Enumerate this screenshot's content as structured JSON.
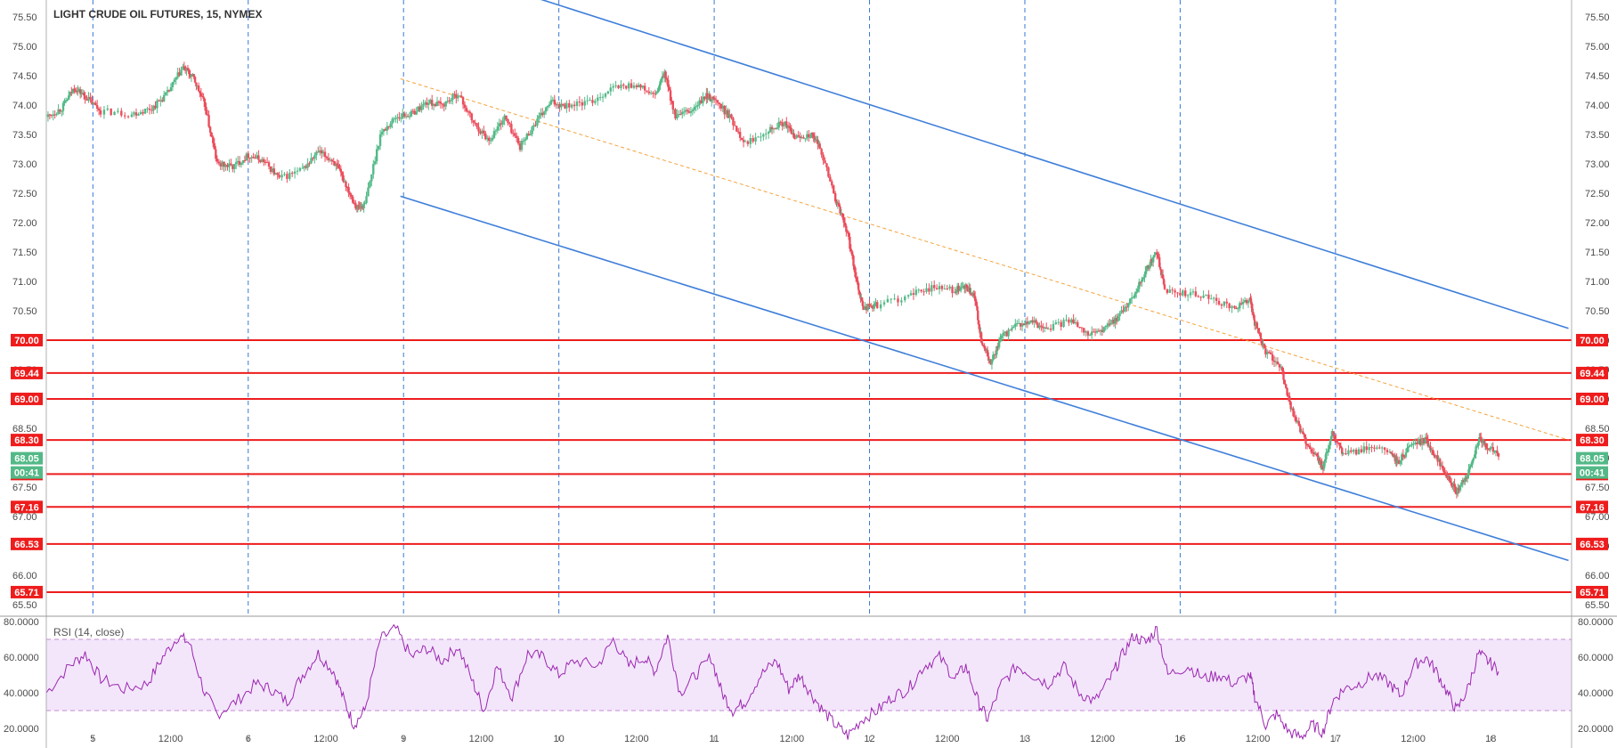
{
  "chart_data": {
    "type": "candlestick",
    "title": "LIGHT CRUDE OIL FUTURES, 15, NYMEX",
    "y_axis": {
      "range": [
        65.3,
        75.7
      ],
      "ticks": [
        "75.50",
        "75.00",
        "74.50",
        "74.00",
        "73.50",
        "73.00",
        "72.50",
        "72.00",
        "71.50",
        "71.00",
        "70.50",
        "70.00",
        "69.50",
        "69.00",
        "68.50",
        "68.00",
        "67.50",
        "67.00",
        "66.50",
        "66.00",
        "65.50"
      ]
    },
    "x_axis": {
      "ticks": [
        {
          "label": "5",
          "t": 1.0
        },
        {
          "label": "12:00",
          "t": 1.5
        },
        {
          "label": "6",
          "t": 2.0
        },
        {
          "label": "12:00",
          "t": 2.5
        },
        {
          "label": "9",
          "t": 3.0
        },
        {
          "label": "12:00",
          "t": 3.5
        },
        {
          "label": "10",
          "t": 4.0
        },
        {
          "label": "12:00",
          "t": 4.5
        },
        {
          "label": "11",
          "t": 5.0
        },
        {
          "label": "12:00",
          "t": 5.5
        },
        {
          "label": "12",
          "t": 6.0
        },
        {
          "label": "12:00",
          "t": 6.5
        },
        {
          "label": "13",
          "t": 7.0
        },
        {
          "label": "12:00",
          "t": 7.5
        },
        {
          "label": "16",
          "t": 8.0
        },
        {
          "label": "12:00",
          "t": 8.5
        },
        {
          "label": "17",
          "t": 9.0
        },
        {
          "label": "12:00",
          "t": 9.5
        },
        {
          "label": "18",
          "t": 10.0
        }
      ],
      "day_separators": [
        1.0,
        2.0,
        3.0,
        4.0,
        5.0,
        6.0,
        7.0,
        8.0,
        9.0
      ]
    },
    "price_path": [
      [
        0.7,
        73.8
      ],
      [
        0.8,
        73.95
      ],
      [
        0.88,
        74.3
      ],
      [
        0.95,
        74.15
      ],
      [
        1.05,
        73.9
      ],
      [
        1.25,
        73.85
      ],
      [
        1.38,
        73.95
      ],
      [
        1.48,
        74.2
      ],
      [
        1.58,
        74.65
      ],
      [
        1.65,
        74.45
      ],
      [
        1.72,
        74.0
      ],
      [
        1.8,
        73.0
      ],
      [
        1.9,
        72.95
      ],
      [
        2.0,
        73.15
      ],
      [
        2.1,
        73.05
      ],
      [
        2.2,
        72.75
      ],
      [
        2.35,
        72.9
      ],
      [
        2.45,
        73.2
      ],
      [
        2.55,
        73.05
      ],
      [
        2.62,
        72.7
      ],
      [
        2.7,
        72.25
      ],
      [
        2.75,
        72.3
      ],
      [
        2.85,
        73.5
      ],
      [
        2.95,
        73.8
      ],
      [
        3.05,
        73.85
      ],
      [
        3.15,
        74.05
      ],
      [
        3.25,
        74.0
      ],
      [
        3.35,
        74.2
      ],
      [
        3.45,
        73.7
      ],
      [
        3.55,
        73.4
      ],
      [
        3.65,
        73.8
      ],
      [
        3.75,
        73.3
      ],
      [
        3.85,
        73.7
      ],
      [
        3.95,
        74.05
      ],
      [
        4.05,
        74.0
      ],
      [
        4.2,
        74.05
      ],
      [
        4.35,
        74.3
      ],
      [
        4.5,
        74.35
      ],
      [
        4.62,
        74.15
      ],
      [
        4.68,
        74.55
      ],
      [
        4.75,
        73.8
      ],
      [
        4.85,
        73.9
      ],
      [
        4.95,
        74.15
      ],
      [
        5.0,
        74.1
      ],
      [
        5.1,
        73.8
      ],
      [
        5.2,
        73.35
      ],
      [
        5.35,
        73.6
      ],
      [
        5.45,
        73.7
      ],
      [
        5.52,
        73.45
      ],
      [
        5.62,
        73.5
      ],
      [
        5.68,
        73.3
      ],
      [
        5.78,
        72.4
      ],
      [
        5.85,
        71.9
      ],
      [
        5.92,
        71.0
      ],
      [
        5.96,
        70.55
      ],
      [
        6.05,
        70.6
      ],
      [
        6.25,
        70.75
      ],
      [
        6.4,
        70.9
      ],
      [
        6.55,
        70.85
      ],
      [
        6.62,
        70.9
      ],
      [
        6.68,
        70.7
      ],
      [
        6.72,
        70.0
      ],
      [
        6.78,
        69.6
      ],
      [
        6.85,
        70.05
      ],
      [
        6.95,
        70.25
      ],
      [
        7.05,
        70.3
      ],
      [
        7.15,
        70.2
      ],
      [
        7.3,
        70.35
      ],
      [
        7.42,
        70.1
      ],
      [
        7.52,
        70.2
      ],
      [
        7.6,
        70.4
      ],
      [
        7.7,
        70.75
      ],
      [
        7.78,
        71.2
      ],
      [
        7.85,
        71.5
      ],
      [
        7.9,
        70.85
      ],
      [
        8.05,
        70.8
      ],
      [
        8.2,
        70.7
      ],
      [
        8.35,
        70.55
      ],
      [
        8.45,
        70.7
      ],
      [
        8.48,
        70.3
      ],
      [
        8.55,
        69.8
      ],
      [
        8.65,
        69.5
      ],
      [
        8.72,
        68.8
      ],
      [
        8.8,
        68.3
      ],
      [
        8.88,
        68.0
      ],
      [
        8.92,
        67.85
      ],
      [
        8.98,
        68.4
      ],
      [
        9.05,
        68.05
      ],
      [
        9.2,
        68.15
      ],
      [
        9.35,
        68.1
      ],
      [
        9.4,
        67.9
      ],
      [
        9.48,
        68.2
      ],
      [
        9.58,
        68.3
      ],
      [
        9.65,
        68.0
      ],
      [
        9.72,
        67.7
      ],
      [
        9.78,
        67.4
      ],
      [
        9.85,
        67.7
      ],
      [
        9.92,
        68.3
      ],
      [
        9.97,
        68.2
      ],
      [
        10.05,
        68.05
      ]
    ],
    "trend_lines": [
      {
        "style": "channel-upper",
        "color": "#3f7fd9",
        "from": [
          3.65,
          76.0
        ],
        "to": [
          10.5,
          70.2
        ]
      },
      {
        "style": "channel-lower",
        "color": "#3f7fd9",
        "from": [
          2.98,
          72.45
        ],
        "to": [
          10.5,
          66.25
        ]
      },
      {
        "style": "midline-dashed",
        "color": "#f5a23c",
        "from": [
          2.98,
          74.45
        ],
        "to": [
          10.5,
          68.3
        ]
      }
    ],
    "horizontal_levels": [
      {
        "label": "70.00",
        "value": 70.0
      },
      {
        "label": "69.44",
        "value": 69.44
      },
      {
        "label": "69.00",
        "value": 69.0
      },
      {
        "label": "68.30",
        "value": 68.3
      },
      {
        "label": "67.72",
        "value": 67.72
      },
      {
        "label": "67.16",
        "value": 67.16
      },
      {
        "label": "66.53",
        "value": 66.53
      },
      {
        "label": "65.71",
        "value": 65.71
      }
    ],
    "current_price": {
      "label": "68.05",
      "value": 68.05,
      "color": "#53b987"
    },
    "countdown": {
      "label": "00:41",
      "color": "#53b987"
    },
    "rsi": {
      "title": "RSI (14, close)",
      "range": [
        10,
        82
      ],
      "ticks": [
        "80.0000",
        "60.0000",
        "40.0000",
        "20.0000"
      ],
      "overbought": 70,
      "oversold": 30,
      "band_color": "#f3e6fb",
      "line_color": "#9c27b0",
      "path": [
        [
          0.7,
          40
        ],
        [
          0.85,
          55
        ],
        [
          0.95,
          62
        ],
        [
          1.05,
          48
        ],
        [
          1.2,
          42
        ],
        [
          1.35,
          45
        ],
        [
          1.45,
          60
        ],
        [
          1.55,
          72
        ],
        [
          1.62,
          68
        ],
        [
          1.72,
          40
        ],
        [
          1.8,
          28
        ],
        [
          1.92,
          35
        ],
        [
          2.05,
          45
        ],
        [
          2.15,
          42
        ],
        [
          2.25,
          35
        ],
        [
          2.35,
          50
        ],
        [
          2.45,
          62
        ],
        [
          2.55,
          52
        ],
        [
          2.62,
          35
        ],
        [
          2.68,
          22
        ],
        [
          2.75,
          30
        ],
        [
          2.85,
          70
        ],
        [
          2.95,
          76
        ],
        [
          3.05,
          60
        ],
        [
          3.15,
          65
        ],
        [
          3.25,
          58
        ],
        [
          3.35,
          66
        ],
        [
          3.45,
          45
        ],
        [
          3.52,
          30
        ],
        [
          3.6,
          55
        ],
        [
          3.7,
          38
        ],
        [
          3.8,
          62
        ],
        [
          3.9,
          60
        ],
        [
          4.0,
          50
        ],
        [
          4.1,
          58
        ],
        [
          4.25,
          55
        ],
        [
          4.35,
          70
        ],
        [
          4.45,
          55
        ],
        [
          4.55,
          60
        ],
        [
          4.62,
          52
        ],
        [
          4.7,
          72
        ],
        [
          4.78,
          40
        ],
        [
          4.88,
          50
        ],
        [
          4.98,
          60
        ],
        [
          5.05,
          40
        ],
        [
          5.12,
          30
        ],
        [
          5.2,
          35
        ],
        [
          5.3,
          50
        ],
        [
          5.4,
          58
        ],
        [
          5.48,
          42
        ],
        [
          5.55,
          50
        ],
        [
          5.62,
          40
        ],
        [
          5.7,
          30
        ],
        [
          5.78,
          22
        ],
        [
          5.86,
          16
        ],
        [
          5.95,
          25
        ],
        [
          6.05,
          30
        ],
        [
          6.15,
          38
        ],
        [
          6.25,
          42
        ],
        [
          6.35,
          55
        ],
        [
          6.45,
          60
        ],
        [
          6.55,
          48
        ],
        [
          6.62,
          55
        ],
        [
          6.7,
          35
        ],
        [
          6.76,
          25
        ],
        [
          6.85,
          45
        ],
        [
          6.95,
          55
        ],
        [
          7.05,
          50
        ],
        [
          7.15,
          45
        ],
        [
          7.25,
          55
        ],
        [
          7.35,
          40
        ],
        [
          7.45,
          35
        ],
        [
          7.55,
          48
        ],
        [
          7.62,
          60
        ],
        [
          7.7,
          72
        ],
        [
          7.78,
          68
        ],
        [
          7.85,
          76
        ],
        [
          7.92,
          50
        ],
        [
          8.05,
          55
        ],
        [
          8.15,
          48
        ],
        [
          8.25,
          50
        ],
        [
          8.35,
          45
        ],
        [
          8.45,
          50
        ],
        [
          8.48,
          38
        ],
        [
          8.55,
          22
        ],
        [
          8.62,
          28
        ],
        [
          8.7,
          18
        ],
        [
          8.78,
          15
        ],
        [
          8.85,
          22
        ],
        [
          8.92,
          18
        ],
        [
          8.98,
          35
        ],
        [
          9.05,
          42
        ],
        [
          9.15,
          45
        ],
        [
          9.25,
          50
        ],
        [
          9.35,
          45
        ],
        [
          9.42,
          38
        ],
        [
          9.5,
          55
        ],
        [
          9.58,
          60
        ],
        [
          9.65,
          52
        ],
        [
          9.72,
          40
        ],
        [
          9.78,
          30
        ],
        [
          9.85,
          42
        ],
        [
          9.92,
          62
        ],
        [
          9.98,
          58
        ],
        [
          10.05,
          52
        ]
      ]
    }
  }
}
